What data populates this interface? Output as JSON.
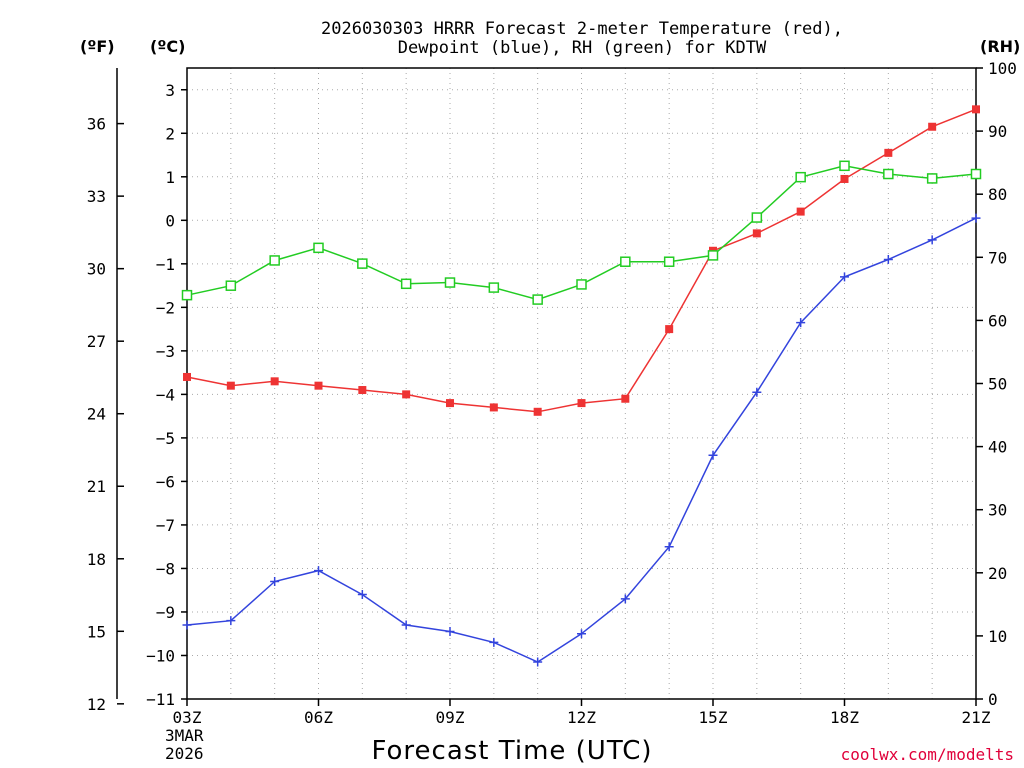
{
  "chart_data": {
    "type": "line",
    "title_line1": "2026030303 HRRR Forecast 2-meter Temperature (red),",
    "title_line2": "Dewpoint (blue), RH (green) for KDTW",
    "xlabel": "Forecast Time (UTC)",
    "unit_left_f": "(ºF)",
    "unit_left_c": "(ºC)",
    "unit_right": "(RH)",
    "credit": "coolwx.com/modelts",
    "x_hours": [
      3,
      4,
      5,
      6,
      7,
      8,
      9,
      10,
      11,
      12,
      13,
      14,
      15,
      16,
      17,
      18,
      19,
      20,
      21
    ],
    "x_ticks": [
      {
        "hour": 3,
        "label": "03Z"
      },
      {
        "hour": 6,
        "label": "06Z"
      },
      {
        "hour": 9,
        "label": "09Z"
      },
      {
        "hour": 12,
        "label": "12Z"
      },
      {
        "hour": 15,
        "label": "15Z"
      },
      {
        "hour": 18,
        "label": "18Z"
      },
      {
        "hour": 21,
        "label": "21Z"
      }
    ],
    "date_label_1": "3MAR",
    "date_label_2": "2026",
    "celsius_range": [
      -11,
      3.5
    ],
    "celsius_ticks": [
      "3",
      "2",
      "1",
      "0",
      "−1",
      "−2",
      "−3",
      "−4",
      "−5",
      "−6",
      "−7",
      "−8",
      "−9",
      "−10",
      "−11"
    ],
    "fahrenheit_ticks": [
      "36",
      "33",
      "30",
      "27",
      "24",
      "21",
      "18",
      "15",
      "12"
    ],
    "rh_range": [
      0,
      100
    ],
    "rh_ticks": [
      "100",
      "90",
      "80",
      "70",
      "60",
      "50",
      "40",
      "30",
      "20",
      "10",
      "0"
    ],
    "series": [
      {
        "name": "Temperature",
        "color": "#ee3333",
        "marker": "filled-square",
        "values": [
          -3.6,
          -3.8,
          -3.7,
          -3.8,
          -3.9,
          -4.0,
          -4.2,
          -4.3,
          -4.4,
          -4.2,
          -4.1,
          -2.5,
          -0.7,
          -0.3,
          0.2,
          0.95,
          1.55,
          2.15,
          2.55
        ]
      },
      {
        "name": "Dewpoint",
        "color": "#3344dd",
        "marker": "plus",
        "values": [
          -9.3,
          -9.2,
          -8.3,
          -8.05,
          -8.6,
          -9.3,
          -9.45,
          -9.7,
          -10.15,
          -9.5,
          -8.7,
          -7.5,
          -5.4,
          -3.95,
          -2.35,
          -1.3,
          -0.9,
          -0.45,
          0.05
        ]
      },
      {
        "name": "RH",
        "color": "#22cc22",
        "marker": "open-square",
        "values": [
          64,
          65.5,
          69.5,
          71.5,
          69,
          65.8,
          66,
          65.2,
          63.3,
          65.7,
          69.3,
          69.3,
          70.3,
          76.3,
          82.7,
          84.5,
          83.2,
          82.5,
          83.2
        ]
      }
    ]
  }
}
